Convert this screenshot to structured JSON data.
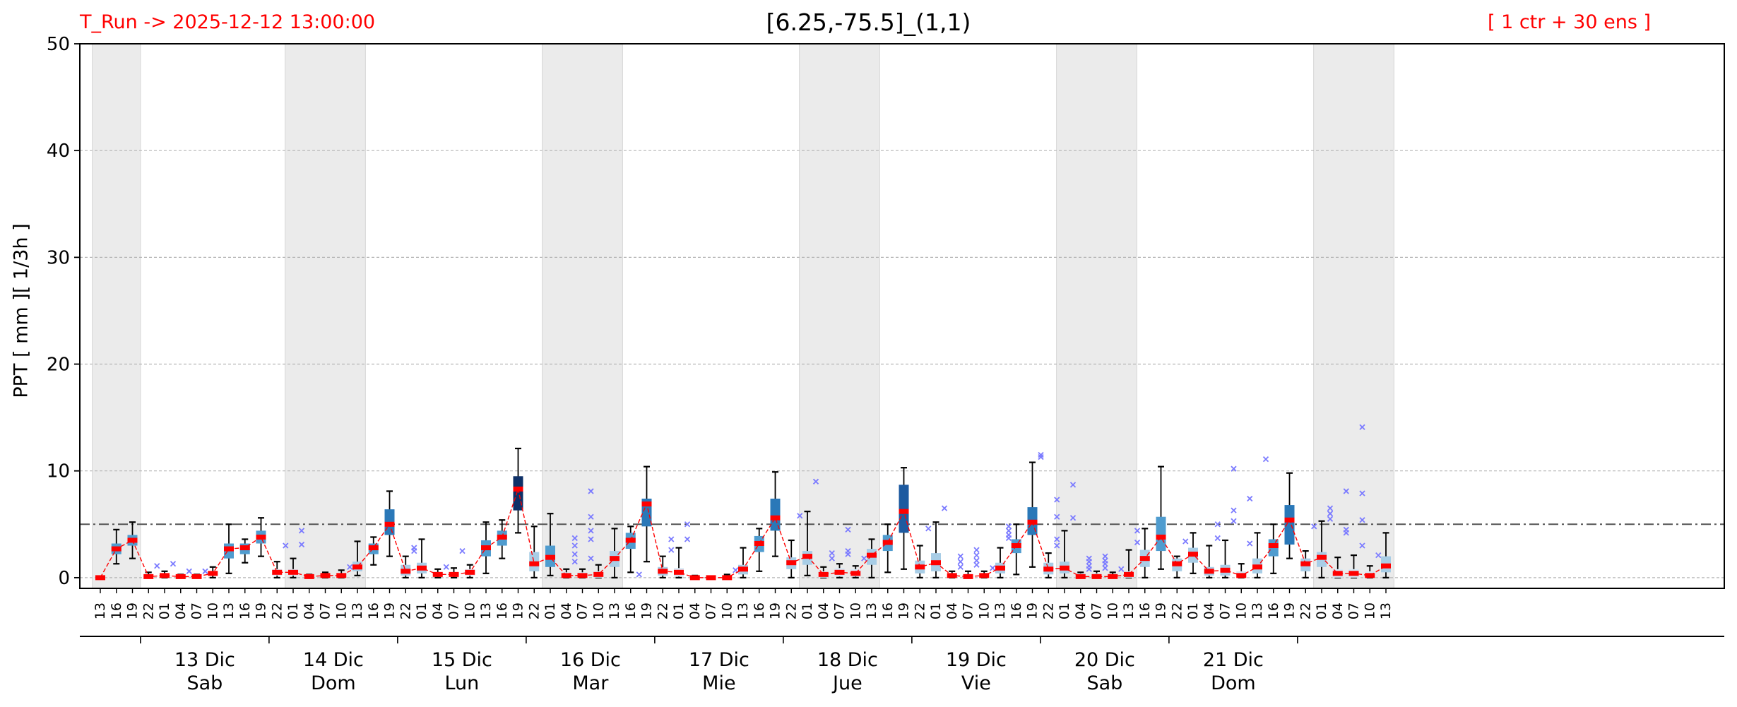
{
  "header": {
    "run": "T_Run -> 2025-12-12  13:00:00",
    "title": "[6.25,-75.5]_(1,1)",
    "members": "[ 1 ctr + 30 ens ]"
  },
  "colors": {
    "median": "#ff0000",
    "mean_line": "#ff0000",
    "whisker": "#000000",
    "outlier": "#7b7bff",
    "night_shade": "#ebebeb",
    "threshold_line": "#555555",
    "box_scale": [
      "#d7e9f5",
      "#a8cde6",
      "#4f9ccf",
      "#2a78b8",
      "#1d5aa0",
      "#0f3168"
    ]
  },
  "chart_data": {
    "type": "box",
    "title": "[6.25,-75.5]_(1,1)",
    "ylabel": "PPT  [ mm ][ 1/3h ]",
    "ylim": [
      -1,
      50
    ],
    "yticks": [
      0,
      10,
      20,
      30,
      40,
      50
    ],
    "grid": "horizontal dashed",
    "threshold": 5,
    "night_shading_hours": "13-22 day / 22-13 night shaded",
    "hours": [
      "13",
      "16",
      "19",
      "22",
      "01",
      "04",
      "07",
      "10",
      "13",
      "16",
      "19",
      "22",
      "01",
      "04",
      "07",
      "10",
      "13",
      "16",
      "19",
      "22",
      "01",
      "04",
      "07",
      "10",
      "13",
      "16",
      "19",
      "22",
      "01",
      "04",
      "07",
      "10",
      "13",
      "16",
      "19",
      "22",
      "01",
      "04",
      "07",
      "10",
      "13",
      "16",
      "19",
      "22",
      "01",
      "04",
      "07",
      "10",
      "13",
      "16",
      "19",
      "22",
      "01",
      "04",
      "07",
      "10",
      "13",
      "16",
      "19",
      "22",
      "01",
      "04",
      "07",
      "10",
      "13",
      "16",
      "19",
      "22",
      "01",
      "04",
      "07",
      "10",
      "13",
      "16",
      "19",
      "22",
      "01",
      "04",
      "07",
      "10",
      "13"
    ],
    "days": [
      {
        "date": "13 Dic",
        "weekday": "Sab"
      },
      {
        "date": "14 Dic",
        "weekday": "Dom"
      },
      {
        "date": "15 Dic",
        "weekday": "Lun"
      },
      {
        "date": "16 Dic",
        "weekday": "Mar"
      },
      {
        "date": "17 Dic",
        "weekday": "Mie"
      },
      {
        "date": "18 Dic",
        "weekday": "Jue"
      },
      {
        "date": "19 Dic",
        "weekday": "Vie"
      },
      {
        "date": "20 Dic",
        "weekday": "Sab"
      },
      {
        "date": "21 Dic",
        "weekday": "Dom"
      }
    ],
    "series": [
      {
        "median": 0,
        "q1": 0,
        "q3": 0,
        "lo": 0,
        "hi": 0,
        "fl": []
      },
      {
        "median": 2.7,
        "q1": 2.2,
        "q3": 3.2,
        "lo": 1.3,
        "hi": 4.5,
        "fl": []
      },
      {
        "median": 3.5,
        "q1": 3.0,
        "q3": 4.0,
        "lo": 1.8,
        "hi": 5.2,
        "fl": []
      },
      {
        "median": 0.1,
        "q1": 0,
        "q3": 0.2,
        "lo": 0,
        "hi": 0.5,
        "fl": [
          1.1
        ]
      },
      {
        "median": 0.2,
        "q1": 0,
        "q3": 0.4,
        "lo": 0,
        "hi": 0.6,
        "fl": [
          1.3
        ]
      },
      {
        "median": 0.1,
        "q1": 0,
        "q3": 0.2,
        "lo": 0,
        "hi": 0.3,
        "fl": [
          0.6
        ]
      },
      {
        "median": 0.1,
        "q1": 0,
        "q3": 0.2,
        "lo": 0,
        "hi": 0.3,
        "fl": [
          0.6
        ]
      },
      {
        "median": 0.4,
        "q1": 0.2,
        "q3": 0.6,
        "lo": 0,
        "hi": 1.0,
        "fl": []
      },
      {
        "median": 2.7,
        "q1": 1.8,
        "q3": 3.2,
        "lo": 0.4,
        "hi": 5.0,
        "fl": []
      },
      {
        "median": 2.8,
        "q1": 2.2,
        "q3": 3.2,
        "lo": 1.4,
        "hi": 3.6,
        "fl": []
      },
      {
        "median": 3.8,
        "q1": 3.2,
        "q3": 4.4,
        "lo": 2.0,
        "hi": 5.6,
        "fl": []
      },
      {
        "median": 0.5,
        "q1": 0.2,
        "q3": 0.8,
        "lo": 0,
        "hi": 1.5,
        "fl": [
          3.0
        ]
      },
      {
        "median": 0.5,
        "q1": 0.2,
        "q3": 0.8,
        "lo": 0,
        "hi": 1.8,
        "fl": [
          3.1,
          4.4
        ]
      },
      {
        "median": 0.1,
        "q1": 0,
        "q3": 0.2,
        "lo": 0,
        "hi": 0.3,
        "fl": []
      },
      {
        "median": 0.2,
        "q1": 0,
        "q3": 0.3,
        "lo": 0,
        "hi": 0.5,
        "fl": []
      },
      {
        "median": 0.2,
        "q1": 0,
        "q3": 0.4,
        "lo": 0,
        "hi": 0.7,
        "fl": [
          1.0
        ]
      },
      {
        "median": 1.0,
        "q1": 0.6,
        "q3": 1.5,
        "lo": 0.2,
        "hi": 3.4,
        "fl": []
      },
      {
        "median": 2.8,
        "q1": 2.2,
        "q3": 3.2,
        "lo": 1.2,
        "hi": 3.8,
        "fl": []
      },
      {
        "median": 5.0,
        "q1": 4.0,
        "q3": 6.4,
        "lo": 2.0,
        "hi": 8.1,
        "fl": []
      },
      {
        "median": 0.6,
        "q1": 0.2,
        "q3": 1.2,
        "lo": 0,
        "hi": 2.0,
        "fl": [
          2.5,
          2.8
        ]
      },
      {
        "median": 0.9,
        "q1": 0.4,
        "q3": 1.4,
        "lo": 0,
        "hi": 3.6,
        "fl": []
      },
      {
        "median": 0.3,
        "q1": 0.1,
        "q3": 0.5,
        "lo": 0,
        "hi": 0.8,
        "fl": [
          1.0
        ]
      },
      {
        "median": 0.3,
        "q1": 0.1,
        "q3": 0.5,
        "lo": 0,
        "hi": 0.9,
        "fl": [
          2.5
        ]
      },
      {
        "median": 0.5,
        "q1": 0.2,
        "q3": 0.8,
        "lo": 0,
        "hi": 1.2,
        "fl": []
      },
      {
        "median": 2.8,
        "q1": 2.0,
        "q3": 3.5,
        "lo": 0.4,
        "hi": 5.2,
        "fl": []
      },
      {
        "median": 3.8,
        "q1": 3.0,
        "q3": 4.4,
        "lo": 1.8,
        "hi": 5.4,
        "fl": []
      },
      {
        "median": 8.3,
        "q1": 6.3,
        "q3": 9.5,
        "lo": 4.2,
        "hi": 12.1,
        "fl": []
      },
      {
        "median": 1.3,
        "q1": 0.6,
        "q3": 2.4,
        "lo": 0,
        "hi": 4.8,
        "fl": []
      },
      {
        "median": 1.9,
        "q1": 1.0,
        "q3": 3.0,
        "lo": 0.2,
        "hi": 6.0,
        "fl": []
      },
      {
        "median": 0.2,
        "q1": 0,
        "q3": 0.5,
        "lo": 0,
        "hi": 0.8,
        "fl": [
          1.5,
          2.2,
          3.0,
          3.7
        ]
      },
      {
        "median": 0.2,
        "q1": 0,
        "q3": 0.5,
        "lo": 0,
        "hi": 0.8,
        "fl": [
          1.8,
          3.6,
          4.4,
          5.7,
          8.1
        ]
      },
      {
        "median": 0.3,
        "q1": 0,
        "q3": 0.6,
        "lo": 0,
        "hi": 1.2,
        "fl": []
      },
      {
        "median": 1.8,
        "q1": 1.0,
        "q3": 2.5,
        "lo": 0,
        "hi": 4.6,
        "fl": []
      },
      {
        "median": 3.5,
        "q1": 2.7,
        "q3": 4.2,
        "lo": 0.5,
        "hi": 4.8,
        "fl": [
          0.3
        ]
      },
      {
        "median": 6.9,
        "q1": 4.8,
        "q3": 7.4,
        "lo": 1.5,
        "hi": 10.4,
        "fl": []
      },
      {
        "median": 0.6,
        "q1": 0.2,
        "q3": 1.0,
        "lo": 0,
        "hi": 2.0,
        "fl": [
          2.6,
          3.6
        ]
      },
      {
        "median": 0.5,
        "q1": 0.1,
        "q3": 0.9,
        "lo": 0,
        "hi": 2.8,
        "fl": [
          3.6,
          5.0
        ]
      },
      {
        "median": 0,
        "q1": 0,
        "q3": 0.1,
        "lo": 0,
        "hi": 0.2,
        "fl": []
      },
      {
        "median": 0,
        "q1": 0,
        "q3": 0,
        "lo": 0,
        "hi": 0.1,
        "fl": []
      },
      {
        "median": 0,
        "q1": 0,
        "q3": 0.1,
        "lo": 0,
        "hi": 0.3,
        "fl": [
          0.7
        ]
      },
      {
        "median": 0.8,
        "q1": 0.3,
        "q3": 1.2,
        "lo": 0,
        "hi": 2.8,
        "fl": []
      },
      {
        "median": 3.2,
        "q1": 2.4,
        "q3": 3.9,
        "lo": 0.6,
        "hi": 4.6,
        "fl": []
      },
      {
        "median": 5.6,
        "q1": 4.4,
        "q3": 7.4,
        "lo": 2.0,
        "hi": 9.9,
        "fl": []
      },
      {
        "median": 1.4,
        "q1": 0.8,
        "q3": 1.9,
        "lo": 0,
        "hi": 3.5,
        "fl": [
          5.8
        ]
      },
      {
        "median": 2.0,
        "q1": 1.2,
        "q3": 2.5,
        "lo": 0.2,
        "hi": 6.2,
        "fl": [
          9.0
        ]
      },
      {
        "median": 0.3,
        "q1": 0,
        "q3": 0.6,
        "lo": 0,
        "hi": 1.0,
        "fl": [
          1.8,
          2.3
        ]
      },
      {
        "median": 0.5,
        "q1": 0.1,
        "q3": 0.9,
        "lo": 0,
        "hi": 1.3,
        "fl": [
          2.2,
          2.5,
          4.5
        ]
      },
      {
        "median": 0.4,
        "q1": 0.1,
        "q3": 0.8,
        "lo": 0,
        "hi": 1.1,
        "fl": [
          1.8
        ]
      },
      {
        "median": 2.1,
        "q1": 1.2,
        "q3": 2.7,
        "lo": 0,
        "hi": 3.6,
        "fl": []
      },
      {
        "median": 3.3,
        "q1": 2.5,
        "q3": 4.0,
        "lo": 0.5,
        "hi": 5.0,
        "fl": []
      },
      {
        "median": 6.2,
        "q1": 4.2,
        "q3": 8.7,
        "lo": 0.8,
        "hi": 10.3,
        "fl": []
      },
      {
        "median": 1.0,
        "q1": 0.4,
        "q3": 1.6,
        "lo": 0,
        "hi": 3.0,
        "fl": [
          4.6
        ]
      },
      {
        "median": 1.4,
        "q1": 0.6,
        "q3": 2.3,
        "lo": 0,
        "hi": 5.2,
        "fl": [
          6.5
        ]
      },
      {
        "median": 0.2,
        "q1": 0,
        "q3": 0.4,
        "lo": 0,
        "hi": 0.6,
        "fl": [
          1.0,
          1.5,
          2.0
        ]
      },
      {
        "median": 0.1,
        "q1": 0,
        "q3": 0.3,
        "lo": 0,
        "hi": 0.6,
        "fl": [
          1.2,
          1.6,
          2.1,
          2.6
        ]
      },
      {
        "median": 0.2,
        "q1": 0,
        "q3": 0.4,
        "lo": 0,
        "hi": 0.6,
        "fl": [
          0.9
        ]
      },
      {
        "median": 0.9,
        "q1": 0.4,
        "q3": 1.4,
        "lo": 0,
        "hi": 2.8,
        "fl": [
          3.7,
          4.0,
          4.4,
          4.8
        ]
      },
      {
        "median": 3.0,
        "q1": 2.3,
        "q3": 3.6,
        "lo": 0.3,
        "hi": 5.0,
        "fl": []
      },
      {
        "median": 5.2,
        "q1": 4.0,
        "q3": 6.6,
        "lo": 1.0,
        "hi": 10.8,
        "fl": [
          11.3,
          11.5
        ]
      },
      {
        "median": 0.8,
        "q1": 0.3,
        "q3": 1.4,
        "lo": 0,
        "hi": 2.3,
        "fl": [
          3.0,
          3.6,
          5.7,
          7.3
        ]
      },
      {
        "median": 0.9,
        "q1": 0.4,
        "q3": 1.5,
        "lo": 0,
        "hi": 4.4,
        "fl": [
          5.6,
          8.7
        ]
      },
      {
        "median": 0.1,
        "q1": 0,
        "q3": 0.4,
        "lo": 0,
        "hi": 0.5,
        "fl": [
          0.8,
          1.1,
          1.5,
          1.8
        ]
      },
      {
        "median": 0.1,
        "q1": 0,
        "q3": 0.4,
        "lo": 0,
        "hi": 0.6,
        "fl": [
          0.9,
          1.3,
          1.6,
          2.0
        ]
      },
      {
        "median": 0.1,
        "q1": 0,
        "q3": 0.3,
        "lo": 0,
        "hi": 0.5,
        "fl": [
          0.8
        ]
      },
      {
        "median": 0.3,
        "q1": 0,
        "q3": 0.6,
        "lo": 0,
        "hi": 2.6,
        "fl": [
          3.3,
          4.4
        ]
      },
      {
        "median": 1.8,
        "q1": 1.0,
        "q3": 2.6,
        "lo": 0,
        "hi": 4.6,
        "fl": []
      },
      {
        "median": 3.8,
        "q1": 2.5,
        "q3": 5.7,
        "lo": 0.8,
        "hi": 10.4,
        "fl": []
      },
      {
        "median": 1.3,
        "q1": 0.6,
        "q3": 1.8,
        "lo": 0,
        "hi": 2.0,
        "fl": [
          3.4
        ]
      },
      {
        "median": 2.2,
        "q1": 1.4,
        "q3": 2.8,
        "lo": 0.4,
        "hi": 4.2,
        "fl": []
      },
      {
        "median": 0.6,
        "q1": 0.2,
        "q3": 1.0,
        "lo": 0,
        "hi": 3.0,
        "fl": [
          3.7,
          5.0
        ]
      },
      {
        "median": 0.7,
        "q1": 0.2,
        "q3": 1.2,
        "lo": 0,
        "hi": 3.5,
        "fl": [
          5.3,
          6.3,
          10.2
        ]
      },
      {
        "median": 0.2,
        "q1": 0,
        "q3": 0.6,
        "lo": 0,
        "hi": 1.3,
        "fl": [
          3.2,
          7.4
        ]
      },
      {
        "median": 1.0,
        "q1": 0.4,
        "q3": 1.8,
        "lo": 0,
        "hi": 4.2,
        "fl": [
          11.1
        ]
      },
      {
        "median": 3.0,
        "q1": 2.0,
        "q3": 3.6,
        "lo": 0.4,
        "hi": 5.0,
        "fl": []
      },
      {
        "median": 5.4,
        "q1": 3.1,
        "q3": 6.8,
        "lo": 1.8,
        "hi": 9.8,
        "fl": []
      },
      {
        "median": 1.3,
        "q1": 0.6,
        "q3": 1.8,
        "lo": 0,
        "hi": 2.5,
        "fl": [
          4.8
        ]
      },
      {
        "median": 1.9,
        "q1": 1.0,
        "q3": 2.4,
        "lo": 0,
        "hi": 5.3,
        "fl": [
          5.5,
          6.0,
          6.5
        ]
      },
      {
        "median": 0.4,
        "q1": 0,
        "q3": 0.8,
        "lo": 0,
        "hi": 1.9,
        "fl": [
          4.2,
          4.5,
          8.1
        ]
      },
      {
        "median": 0.4,
        "q1": 0,
        "q3": 0.8,
        "lo": 0,
        "hi": 2.1,
        "fl": [
          3.0,
          5.4,
          7.9,
          14.1
        ]
      },
      {
        "median": 0.2,
        "q1": 0,
        "q3": 0.6,
        "lo": 0,
        "hi": 1.1,
        "fl": [
          2.1
        ]
      },
      {
        "median": 1.1,
        "q1": 0.5,
        "q3": 2.0,
        "lo": 0,
        "hi": 4.2,
        "fl": []
      }
    ]
  }
}
